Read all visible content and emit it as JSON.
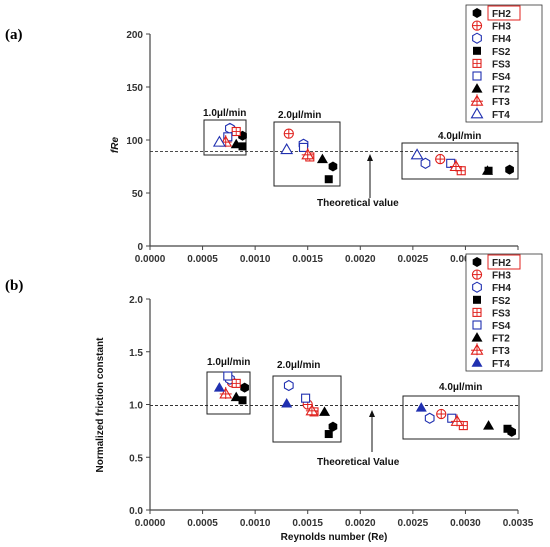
{
  "chart_data": [
    {
      "type": "scatter",
      "panel_label": "(a)",
      "ylabel": "fRe",
      "xlabel": "",
      "xlim": [
        0,
        0.0035
      ],
      "ylim": [
        0,
        200
      ],
      "x_ticks": [
        "0.0000",
        "0.0005",
        "0.0010",
        "0.0015",
        "0.0020",
        "0.0025",
        "0.0030",
        "0.0035"
      ],
      "y_ticks": [
        "0",
        "50",
        "100",
        "150",
        "200"
      ],
      "reference_line": 90,
      "annotation": "Theoretical value",
      "legend_position": "top-right",
      "legend": [
        "FH2",
        "FH3",
        "FH4",
        "FS2",
        "FS3",
        "FS4",
        "FT2",
        "FT3",
        "FT4"
      ],
      "box_labels": [
        "1.0μl/min",
        "2.0μl/min",
        "4.0μl/min"
      ],
      "series": [
        {
          "name": "FH2",
          "points": [
            [
              0.00088,
              104
            ],
            [
              0.00174,
              75
            ],
            [
              0.00342,
              72
            ]
          ]
        },
        {
          "name": "FH3",
          "points": [
            [
              0.00078,
              109
            ],
            [
              0.00132,
              106
            ],
            [
              0.00276,
              82
            ]
          ]
        },
        {
          "name": "FH4",
          "points": [
            [
              0.00076,
              111
            ],
            [
              0.00146,
              96
            ],
            [
              0.00262,
              78
            ]
          ]
        },
        {
          "name": "FS2",
          "points": [
            [
              0.00088,
              94
            ],
            [
              0.0017,
              63
            ],
            [
              0.00322,
              71
            ]
          ]
        },
        {
          "name": "FS3",
          "points": [
            [
              0.00082,
              108
            ],
            [
              0.00152,
              84
            ],
            [
              0.00296,
              71
            ]
          ]
        },
        {
          "name": "FS4",
          "points": [
            [
              0.00074,
              103
            ],
            [
              0.00146,
              93
            ],
            [
              0.00286,
              78
            ]
          ]
        },
        {
          "name": "FT2",
          "points": [
            [
              0.00082,
              96
            ],
            [
              0.00164,
              82
            ],
            [
              0.00321,
              71
            ]
          ]
        },
        {
          "name": "FT3",
          "points": [
            [
              0.00072,
              98
            ],
            [
              0.0015,
              86
            ],
            [
              0.00291,
              75
            ]
          ]
        },
        {
          "name": "FT4",
          "points": [
            [
              0.00066,
              98
            ],
            [
              0.0013,
              91
            ],
            [
              0.00254,
              86
            ]
          ]
        }
      ]
    },
    {
      "type": "scatter",
      "panel_label": "(b)",
      "ylabel": "Normalized friction constant",
      "xlabel": "Reynolds number (Re)",
      "xlim": [
        0,
        0.0035
      ],
      "ylim": [
        0,
        2
      ],
      "x_ticks": [
        "0.0000",
        "0.0005",
        "0.0010",
        "0.0015",
        "0.0020",
        "0.0025",
        "0.0030",
        "0.0035"
      ],
      "y_ticks": [
        "0.0",
        "0.5",
        "1.0",
        "1.5",
        "2.0"
      ],
      "reference_line": 1.0,
      "annotation": "Theoretical Value",
      "legend_position": "top-right",
      "legend": [
        "FH2",
        "FH3",
        "FH4",
        "FS2",
        "FS3",
        "FS4",
        "FT2",
        "FT3",
        "FT4"
      ],
      "box_labels": [
        "1.0μl/min",
        "2.0μl/min",
        "4.0μl/min"
      ],
      "series": [
        {
          "name": "FH2",
          "points": [
            [
              0.0009,
              1.16
            ],
            [
              0.00174,
              0.79
            ],
            [
              0.00344,
              0.74
            ]
          ]
        },
        {
          "name": "FH3",
          "points": [
            [
              0.00078,
              1.21
            ],
            [
              0.0015,
              1.0
            ],
            [
              0.00277,
              0.91
            ]
          ]
        },
        {
          "name": "FH4",
          "points": [
            [
              0.00076,
              1.24
            ],
            [
              0.00132,
              1.18
            ],
            [
              0.00266,
              0.87
            ]
          ]
        },
        {
          "name": "FS2",
          "points": [
            [
              0.00088,
              1.04
            ],
            [
              0.0017,
              0.72
            ],
            [
              0.0034,
              0.77
            ]
          ]
        },
        {
          "name": "FS3",
          "points": [
            [
              0.00082,
              1.2
            ],
            [
              0.00156,
              0.93
            ],
            [
              0.00298,
              0.8
            ]
          ]
        },
        {
          "name": "FS4",
          "points": [
            [
              0.00074,
              1.27
            ],
            [
              0.00148,
              1.06
            ],
            [
              0.00287,
              0.87
            ]
          ]
        },
        {
          "name": "FT2",
          "points": [
            [
              0.00082,
              1.07
            ],
            [
              0.00166,
              0.93
            ],
            [
              0.00322,
              0.8
            ]
          ]
        },
        {
          "name": "FT3",
          "points": [
            [
              0.00072,
              1.1
            ],
            [
              0.00154,
              0.94
            ],
            [
              0.00292,
              0.84
            ]
          ]
        },
        {
          "name": "FT4",
          "points": [
            [
              0.00066,
              1.16
            ],
            [
              0.0013,
              1.01
            ],
            [
              0.00258,
              0.97
            ]
          ]
        }
      ]
    }
  ],
  "style": {
    "red": "#e0201c",
    "blue": "#2030b0",
    "black": "#000000",
    "marker_shapes": {
      "FH2": "hexagon-filled-black",
      "FH3": "circle-crosshair-red",
      "FH4": "hexagon-open-blue",
      "FS2": "square-filled-black",
      "FS3": "square-grid-red",
      "FS4": "square-open-blue",
      "FT2": "triangle-filled-black",
      "FT3": "triangle-cross-red",
      "FT4": "triangle-open-blue"
    },
    "marker_shapes_b": {
      "FT4": "triangle-filled-blue"
    }
  }
}
